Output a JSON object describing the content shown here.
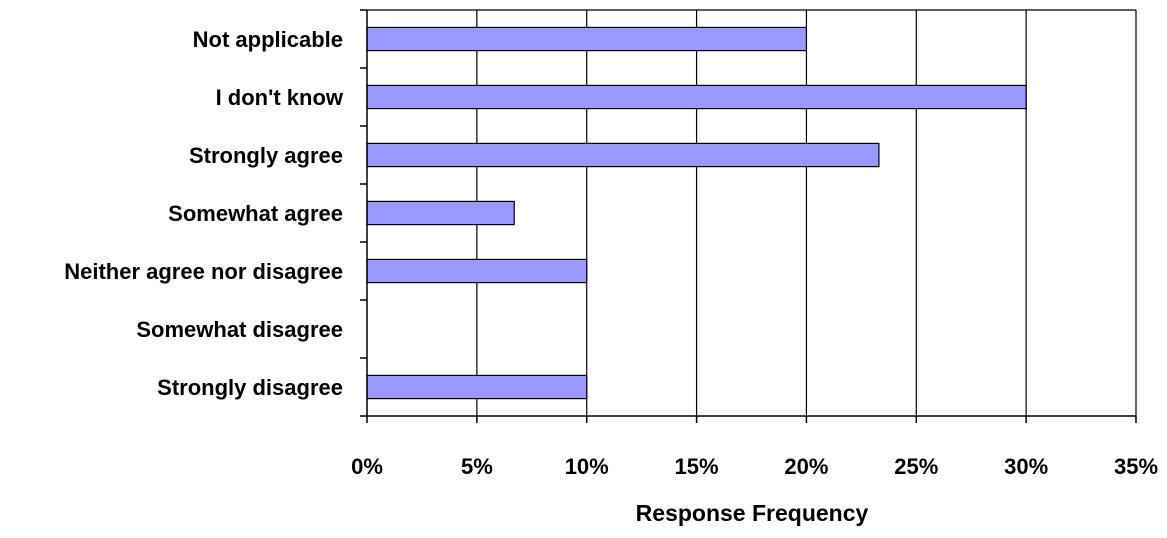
{
  "chart_data": {
    "type": "bar",
    "orientation": "horizontal",
    "title": "",
    "xlabel": "Response Frequency",
    "ylabel": "",
    "categories": [
      "Not applicable",
      "I don't know",
      "Strongly agree",
      "Somewhat agree",
      "Neither agree nor disagree",
      "Somewhat disagree",
      "Strongly disagree"
    ],
    "values": [
      20,
      30,
      23.3,
      6.7,
      10,
      0,
      10
    ],
    "xlim": [
      0,
      35
    ],
    "x_ticks": [
      "0%",
      "5%",
      "10%",
      "15%",
      "20%",
      "25%",
      "30%",
      "35%"
    ],
    "tick_values": [
      0,
      5,
      10,
      15,
      20,
      25,
      30,
      35
    ],
    "value_unit": "%",
    "grid": "vertical major gridlines",
    "legend": "none",
    "bar_color": "#9999ff",
    "bar_border_color": "#000000",
    "plot_border_color": "#000000"
  }
}
